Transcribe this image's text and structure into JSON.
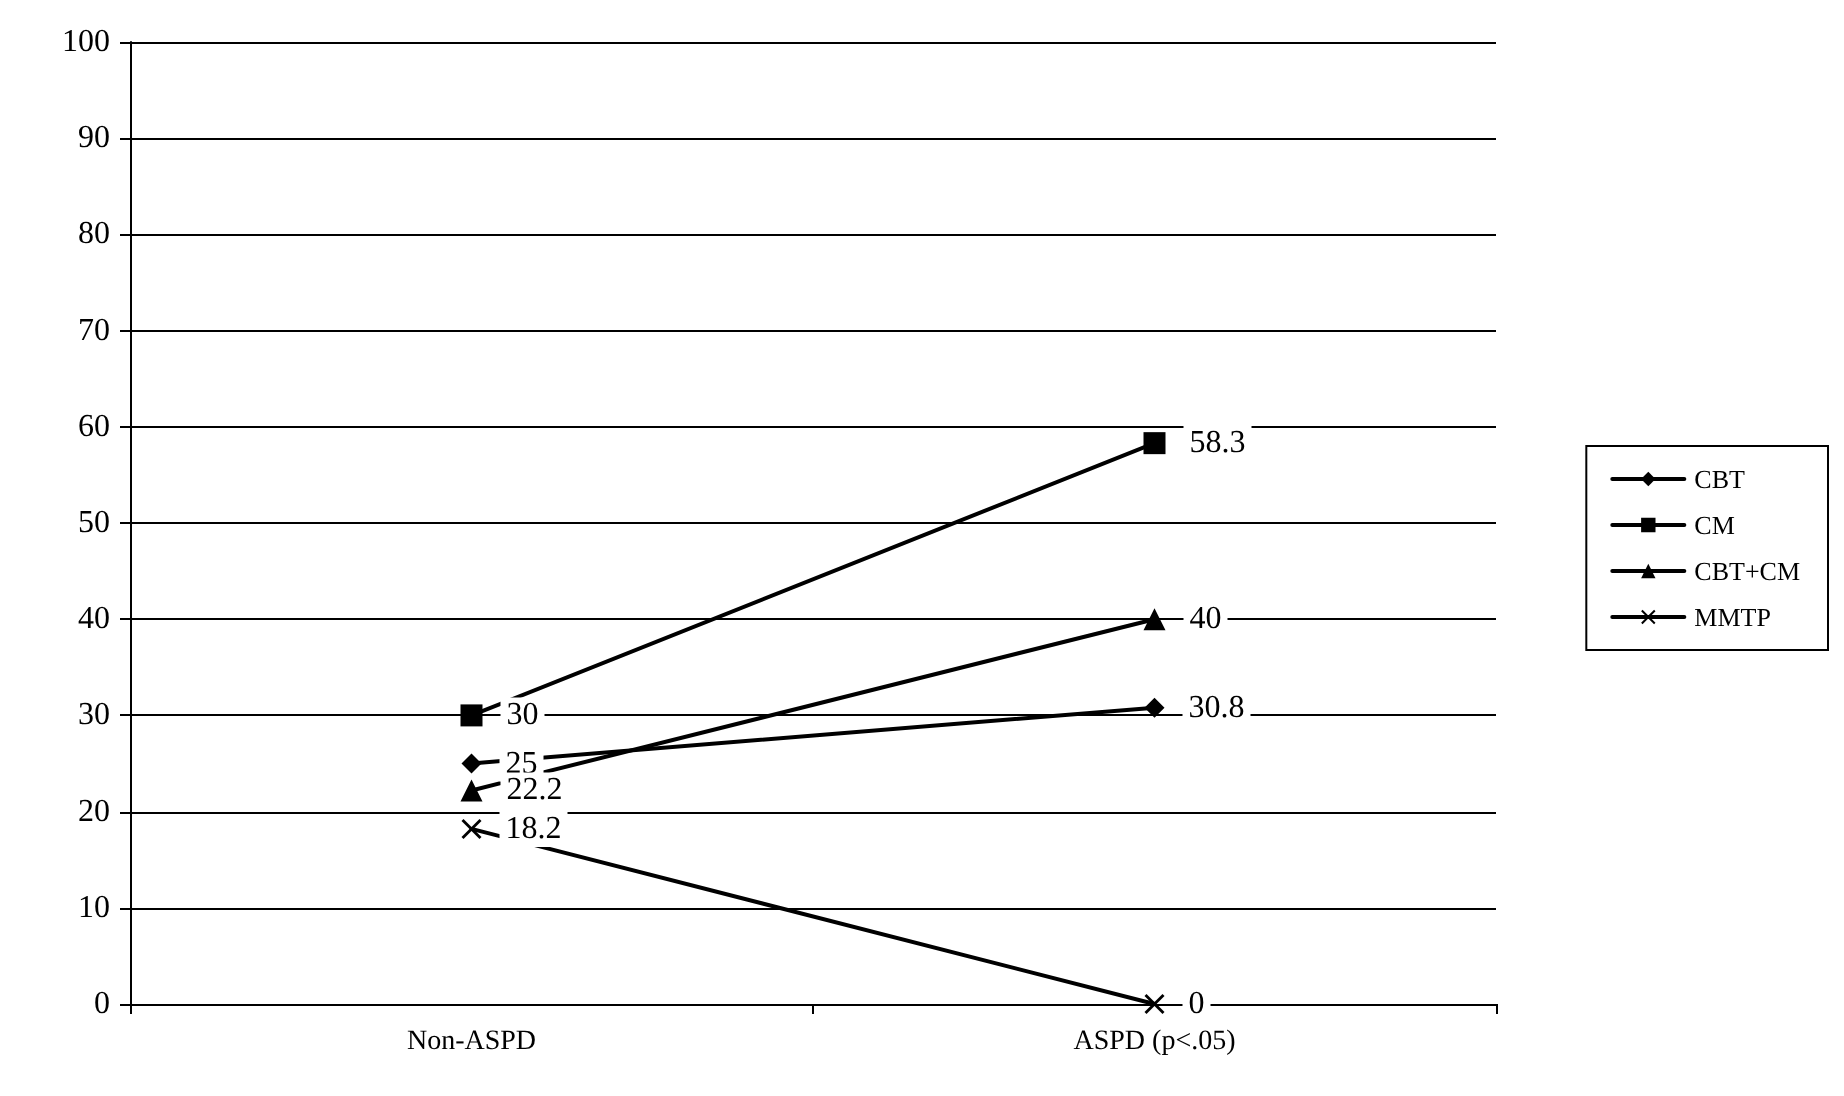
{
  "chart_data": {
    "type": "line",
    "categories": [
      "Non-ASPD",
      "ASPD (p<.05)"
    ],
    "series": [
      {
        "name": "CBT",
        "color": "#000000",
        "marker": "diamond",
        "values": [
          25,
          30.8
        ]
      },
      {
        "name": "CM",
        "color": "#000000",
        "marker": "square",
        "values": [
          30,
          58.3
        ]
      },
      {
        "name": "CBT+CM",
        "color": "#000000",
        "marker": "triangle",
        "values": [
          22.2,
          40
        ]
      },
      {
        "name": "MMTP",
        "color": "#000000",
        "marker": "cross",
        "values": [
          18.2,
          0
        ]
      }
    ],
    "ylim": [
      0,
      100
    ],
    "yticks": [
      0,
      10,
      20,
      30,
      40,
      50,
      60,
      70,
      80,
      90,
      100
    ],
    "grid": "y",
    "legend": "right",
    "data_labels": true,
    "line_style": "solid"
  }
}
